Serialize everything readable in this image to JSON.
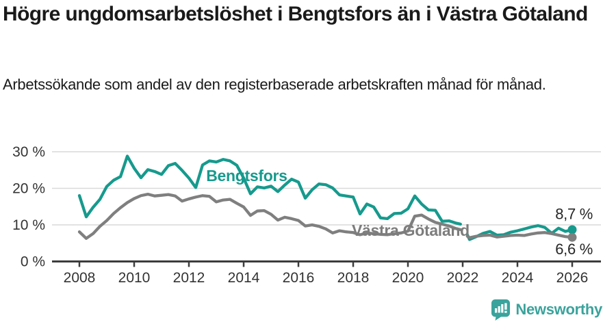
{
  "header": {
    "title": "Högre ungdomsarbetslöshet i Bengtsfors än i Västra Götaland",
    "subtitle": "Arbetssökande som andel av den registerbaserade arbetskraften månad för månad."
  },
  "footer": {
    "brand": "Newsworthy",
    "brand_color": "#3aa39c"
  },
  "chart_data": {
    "type": "line",
    "title": "",
    "xlabel": "",
    "ylabel": "",
    "x_unit": "decimal_year_monthly_series",
    "xlim": [
      2007.0,
      2027.05
    ],
    "ylim": [
      0,
      30
    ],
    "grid": true,
    "legend_position": "inline-labels",
    "grid_color": "#d9d9d9",
    "axis_color": "#3c3c3c",
    "tick_label_color": "#333333",
    "note": "gap in both series at 2022.0 = statistics break; series end with dot markers at 2026.0",
    "xticks": [
      2008,
      2010,
      2012,
      2014,
      2016,
      2018,
      2020,
      2022,
      2024,
      2026
    ],
    "yticks": [
      {
        "value": 0,
        "label": "0 %"
      },
      {
        "value": 10,
        "label": "10 %"
      },
      {
        "value": 20,
        "label": "20 %"
      },
      {
        "value": 30,
        "label": "30 %"
      }
    ],
    "x": [
      2008.0,
      2008.25,
      2008.5,
      2008.75,
      2009.0,
      2009.25,
      2009.5,
      2009.75,
      2010.0,
      2010.25,
      2010.5,
      2010.75,
      2011.0,
      2011.25,
      2011.5,
      2011.75,
      2012.0,
      2012.25,
      2012.5,
      2012.75,
      2013.0,
      2013.25,
      2013.5,
      2013.75,
      2014.0,
      2014.25,
      2014.5,
      2014.75,
      2015.0,
      2015.25,
      2015.5,
      2015.75,
      2016.0,
      2016.25,
      2016.5,
      2016.75,
      2017.0,
      2017.25,
      2017.5,
      2017.75,
      2018.0,
      2018.25,
      2018.5,
      2018.75,
      2019.0,
      2019.25,
      2019.5,
      2019.75,
      2020.0,
      2020.25,
      2020.5,
      2020.75,
      2021.0,
      2021.25,
      2021.5,
      2021.75,
      2021.92,
      2022.0,
      2022.17,
      2022.25,
      2022.5,
      2022.75,
      2023.0,
      2023.25,
      2023.5,
      2023.75,
      2024.0,
      2024.25,
      2024.5,
      2024.75,
      2025.0,
      2025.25,
      2025.5,
      2025.75,
      2026.0
    ],
    "series": [
      {
        "name": "Bengtsfors",
        "color": "#169a8d",
        "end_label": "8,7 %",
        "end_value": 8.7,
        "values": [
          18.0,
          12.2,
          14.8,
          17.0,
          20.5,
          22.2,
          23.2,
          28.8,
          25.5,
          22.9,
          25.1,
          24.6,
          23.8,
          26.2,
          26.8,
          24.9,
          22.8,
          20.2,
          26.4,
          27.5,
          27.2,
          27.9,
          27.5,
          26.3,
          22.8,
          18.5,
          20.4,
          20.1,
          20.6,
          19.1,
          20.9,
          22.5,
          21.7,
          17.3,
          19.6,
          21.2,
          21.0,
          20.1,
          18.2,
          17.9,
          17.6,
          13.0,
          15.7,
          14.9,
          11.9,
          11.7,
          13.1,
          13.2,
          14.4,
          17.9,
          15.7,
          14.1,
          14.0,
          11.0,
          11.1,
          10.5,
          10.2,
          null,
          7.3,
          6.0,
          6.8,
          7.7,
          8.2,
          7.2,
          7.3,
          8.0,
          8.4,
          8.9,
          9.4,
          9.8,
          9.3,
          7.7,
          9.1,
          8.2,
          8.7
        ]
      },
      {
        "name": "Västra Götaland",
        "color": "#7f7f7f",
        "end_label": "6,6 %",
        "end_value": 6.6,
        "values": [
          8.1,
          6.3,
          7.6,
          9.6,
          11.2,
          13.1,
          14.7,
          16.1,
          17.2,
          18.0,
          18.4,
          17.9,
          18.1,
          18.3,
          17.9,
          16.5,
          17.1,
          17.6,
          18.0,
          17.8,
          16.3,
          16.8,
          17.0,
          15.9,
          14.9,
          12.6,
          13.8,
          13.9,
          12.9,
          11.3,
          12.1,
          11.7,
          11.2,
          9.7,
          10.0,
          9.6,
          8.9,
          7.8,
          8.4,
          8.1,
          7.9,
          7.3,
          7.8,
          7.6,
          7.4,
          7.3,
          7.6,
          7.8,
          8.3,
          12.4,
          12.7,
          11.6,
          10.7,
          10.2,
          9.7,
          9.0,
          8.7,
          null,
          6.9,
          6.5,
          6.9,
          7.1,
          7.2,
          6.7,
          6.9,
          7.1,
          7.2,
          7.1,
          7.5,
          7.8,
          7.9,
          7.6,
          7.2,
          6.8,
          6.6
        ]
      }
    ],
    "annotations": [
      {
        "text": "Bengtsfors",
        "x": 2012.63,
        "y": 22.0,
        "anchor": "start",
        "bold": true,
        "size": 23,
        "color": "#169a8d"
      },
      {
        "text": "Västra Götaland",
        "x": 2017.95,
        "y": 7.0,
        "anchor": "start",
        "bold": true,
        "size": 23,
        "color": "#7d7d7d"
      },
      {
        "text": "8,7 %",
        "x": 2026.75,
        "y": 11.6,
        "anchor": "end",
        "bold": false,
        "size": 22,
        "color": "#262626"
      },
      {
        "text": "6,6 %",
        "x": 2026.75,
        "y": 2.0,
        "anchor": "end",
        "bold": false,
        "size": 22,
        "color": "#262626"
      }
    ]
  }
}
